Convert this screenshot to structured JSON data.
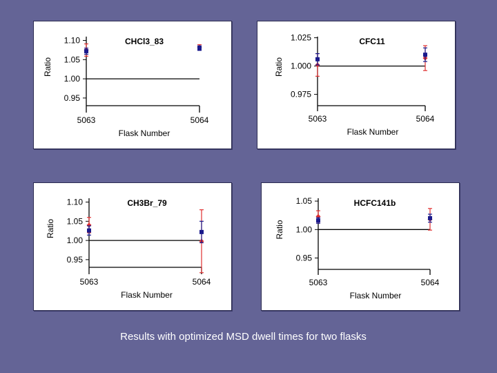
{
  "caption": "Results with optimized MSD dwell times for two flasks",
  "colors": {
    "red_series": "#e03030",
    "blue_series": "#1a1a8c",
    "background": "#646496"
  },
  "chart_data": [
    {
      "type": "scatter",
      "title": "CHCl3_83",
      "xlabel": "Flask Number",
      "ylabel": "Ratio",
      "categories": [
        "5063",
        "5064"
      ],
      "yticks": [
        "1.10",
        "1.05",
        "1.00",
        "0.95"
      ],
      "ylim": [
        0.93,
        1.11
      ],
      "reference_line": 1.0,
      "series": [
        {
          "color": "red",
          "values": [
            1.075,
            1.082
          ],
          "errors": [
            0.016,
            0.007
          ]
        },
        {
          "color": "blue",
          "values": [
            1.072,
            1.08
          ],
          "errors": [
            0.008,
            0.006
          ]
        }
      ]
    },
    {
      "type": "scatter",
      "title": "CFC11",
      "xlabel": "Flask Number",
      "ylabel": "Ratio",
      "categories": [
        "5063",
        "5064"
      ],
      "yticks": [
        "1.025",
        "1.000",
        "0.975"
      ],
      "ylim": [
        0.965,
        1.026
      ],
      "reference_line": 1.0,
      "series": [
        {
          "color": "red",
          "values": [
            1.001,
            1.007
          ],
          "errors": [
            0.01,
            0.011
          ]
        },
        {
          "color": "blue",
          "values": [
            1.006,
            1.01
          ],
          "errors": [
            0.005,
            0.006
          ]
        }
      ]
    },
    {
      "type": "scatter",
      "title": "CH3Br_79",
      "xlabel": "Flask Number",
      "ylabel": "Ratio",
      "categories": [
        "5063",
        "5064"
      ],
      "yticks": [
        "1.10",
        "1.05",
        "1.00",
        "0.95"
      ],
      "ylim": [
        0.93,
        1.11
      ],
      "reference_line": 1.0,
      "series": [
        {
          "color": "red",
          "values": [
            1.04,
            0.998
          ],
          "errors": [
            0.02,
            0.082
          ]
        },
        {
          "color": "blue",
          "values": [
            1.026,
            1.022
          ],
          "errors": [
            0.012,
            0.028
          ]
        }
      ]
    },
    {
      "type": "scatter",
      "title": "HCFC141b",
      "xlabel": "Flask Number",
      "ylabel": "Ratio",
      "categories": [
        "5063",
        "5064"
      ],
      "yticks": [
        "1.05",
        "1.00",
        "0.95"
      ],
      "ylim": [
        0.93,
        1.055
      ],
      "reference_line": 1.0,
      "series": [
        {
          "color": "red",
          "values": [
            1.023,
            1.018
          ],
          "errors": [
            0.01,
            0.019
          ]
        },
        {
          "color": "blue",
          "values": [
            1.016,
            1.02
          ],
          "errors": [
            0.005,
            0.007
          ]
        }
      ]
    }
  ]
}
